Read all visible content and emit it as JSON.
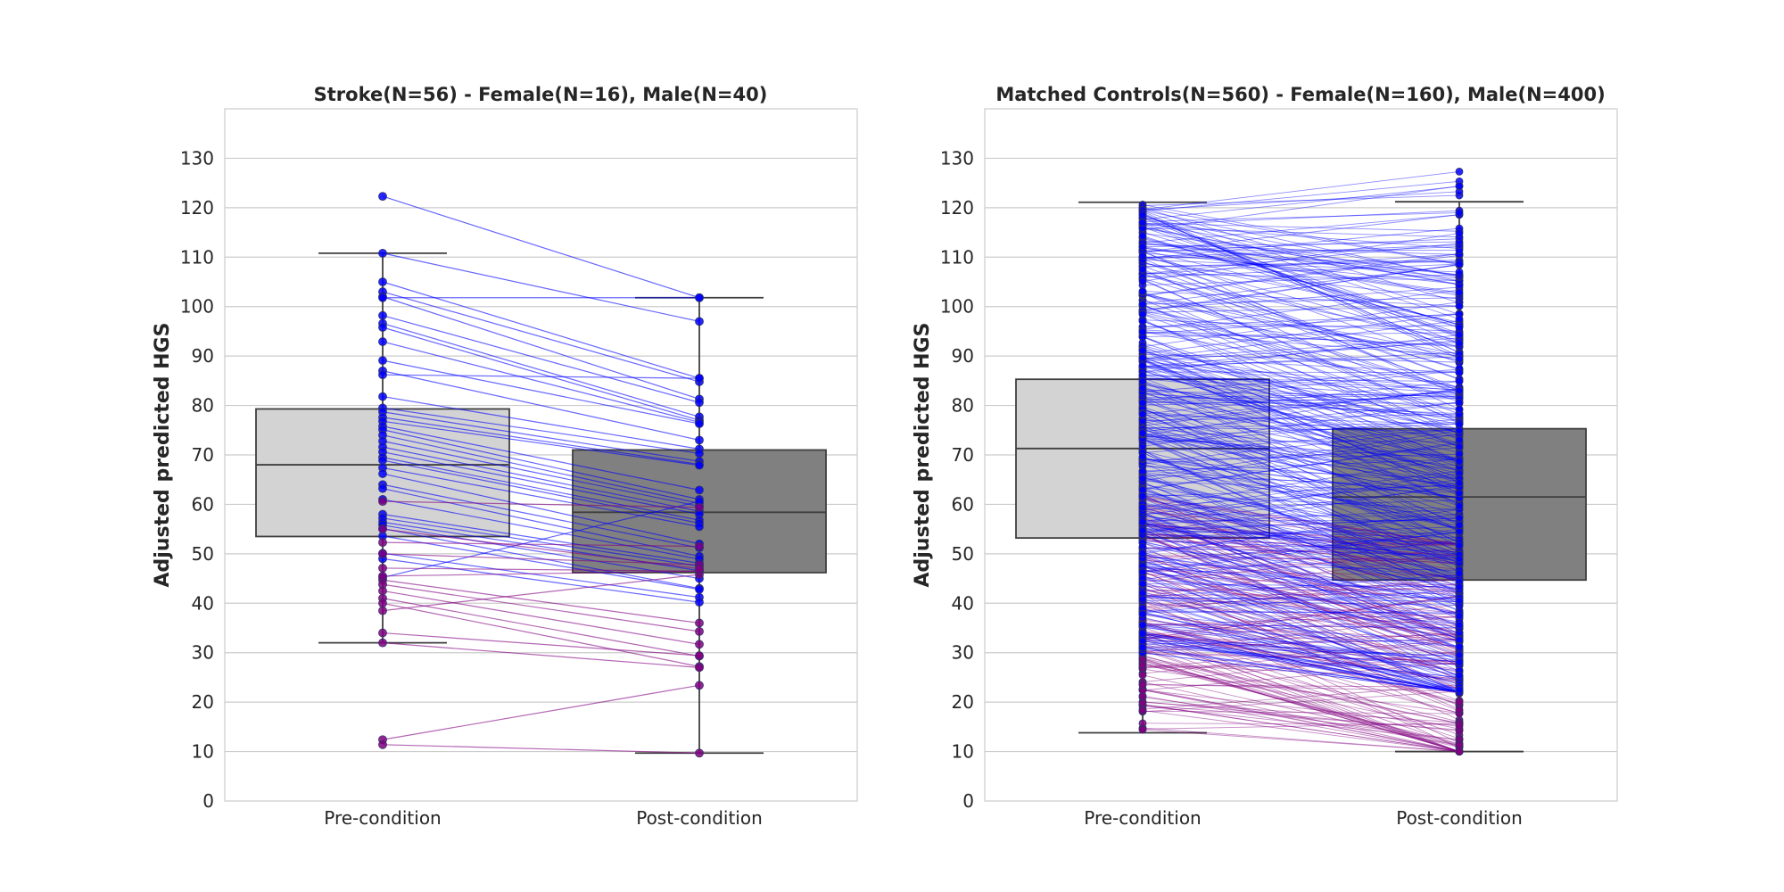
{
  "chart_data": [
    {
      "type": "box",
      "title": "Stroke(N=56) - Female(N=16), Male(N=40)",
      "ylabel": "Adjusted predicted HGS",
      "xlabel": "",
      "categories": [
        "Pre-condition",
        "Post-condition"
      ],
      "ylim": [
        0,
        140
      ],
      "yticks": [
        "0",
        "10",
        "20",
        "30",
        "40",
        "50",
        "60",
        "70",
        "80",
        "90",
        "100",
        "110",
        "120",
        "130"
      ],
      "grid": true,
      "legend": "none",
      "colors": {
        "pre_box": "#d3d3d3",
        "post_box": "#808080",
        "male": "#0000ff",
        "female": "#800080"
      },
      "boxes": [
        {
          "category": "Pre-condition",
          "whisker_low": 32.0,
          "q1": 53.5,
          "median": 68.0,
          "q3": 79.3,
          "whisker_high": 110.8
        },
        {
          "category": "Post-condition",
          "whisker_low": 9.7,
          "q1": 46.2,
          "median": 58.4,
          "q3": 71.0,
          "whisker_high": 101.8
        }
      ],
      "pairs": {
        "male": [
          [
            122.3,
            101.8
          ],
          [
            110.8,
            97.0
          ],
          [
            105.0,
            85.5
          ],
          [
            103.0,
            84.8
          ],
          [
            102.0,
            81.3
          ],
          [
            101.8,
            101.8
          ],
          [
            98.2,
            80.6
          ],
          [
            96.6,
            77.7
          ],
          [
            95.8,
            77.0
          ],
          [
            92.9,
            76.6
          ],
          [
            89.1,
            76.3
          ],
          [
            87.0,
            73.0
          ],
          [
            86.2,
            85.5
          ],
          [
            81.8,
            71.2
          ],
          [
            79.5,
            70.3
          ],
          [
            78.7,
            68.7
          ],
          [
            77.6,
            68.1
          ],
          [
            76.8,
            67.9
          ],
          [
            75.8,
            62.9
          ],
          [
            75.1,
            61.0
          ],
          [
            74.0,
            60.2
          ],
          [
            72.8,
            59.6
          ],
          [
            71.6,
            58.6
          ],
          [
            70.6,
            58.0
          ],
          [
            69.5,
            56.8
          ],
          [
            68.9,
            56.2
          ],
          [
            67.4,
            55.5
          ],
          [
            66.2,
            52.0
          ],
          [
            64.0,
            51.2
          ],
          [
            63.2,
            49.5
          ],
          [
            61.0,
            48.9
          ],
          [
            58.0,
            48.1
          ],
          [
            57.2,
            47.5
          ],
          [
            56.4,
            46.6
          ],
          [
            55.8,
            45.0
          ],
          [
            55.1,
            43.0
          ],
          [
            53.6,
            42.8
          ],
          [
            50.1,
            41.2
          ],
          [
            49.0,
            40.2
          ],
          [
            45.2,
            60.6
          ]
        ],
        "female": [
          [
            60.6,
            59.4
          ],
          [
            52.3,
            51.5
          ],
          [
            50.0,
            47.8
          ],
          [
            47.1,
            46.5
          ],
          [
            44.7,
            36.0
          ],
          [
            43.8,
            34.3
          ],
          [
            42.5,
            31.7
          ],
          [
            41.0,
            29.3
          ],
          [
            40.0,
            27.2
          ],
          [
            38.5,
            45.8
          ],
          [
            34.0,
            29.4
          ],
          [
            32.0,
            27.0
          ],
          [
            12.4,
            23.4
          ],
          [
            11.4,
            9.7
          ],
          [
            45.5,
            46.5
          ],
          [
            55.0,
            47.0
          ]
        ]
      }
    },
    {
      "type": "box",
      "title": "Matched Controls(N=560) - Female(N=160), Male(N=400)",
      "ylabel": "Adjusted predicted HGS",
      "xlabel": "",
      "categories": [
        "Pre-condition",
        "Post-condition"
      ],
      "ylim": [
        0,
        140
      ],
      "yticks": [
        "0",
        "10",
        "20",
        "30",
        "40",
        "50",
        "60",
        "70",
        "80",
        "90",
        "100",
        "110",
        "120",
        "130"
      ],
      "grid": true,
      "legend": "none",
      "colors": {
        "pre_box": "#d3d3d3",
        "post_box": "#808080",
        "male": "#0000ff",
        "female": "#800080"
      },
      "boxes": [
        {
          "category": "Pre-condition",
          "whisker_low": 13.8,
          "q1": 53.2,
          "median": 71.3,
          "q3": 85.3,
          "whisker_high": 121.1
        },
        {
          "category": "Post-condition",
          "whisker_low": 10.0,
          "q1": 44.7,
          "median": 61.5,
          "q3": 75.3,
          "whisker_high": 121.2
        }
      ],
      "pairs_summary": {
        "male": {
          "count": 400,
          "pre_range": [
            30,
            121
          ],
          "post_range": [
            22,
            127.3
          ]
        },
        "female": {
          "count": 160,
          "pre_range": [
            13.8,
            62
          ],
          "post_range": [
            10,
            52
          ]
        }
      }
    }
  ]
}
